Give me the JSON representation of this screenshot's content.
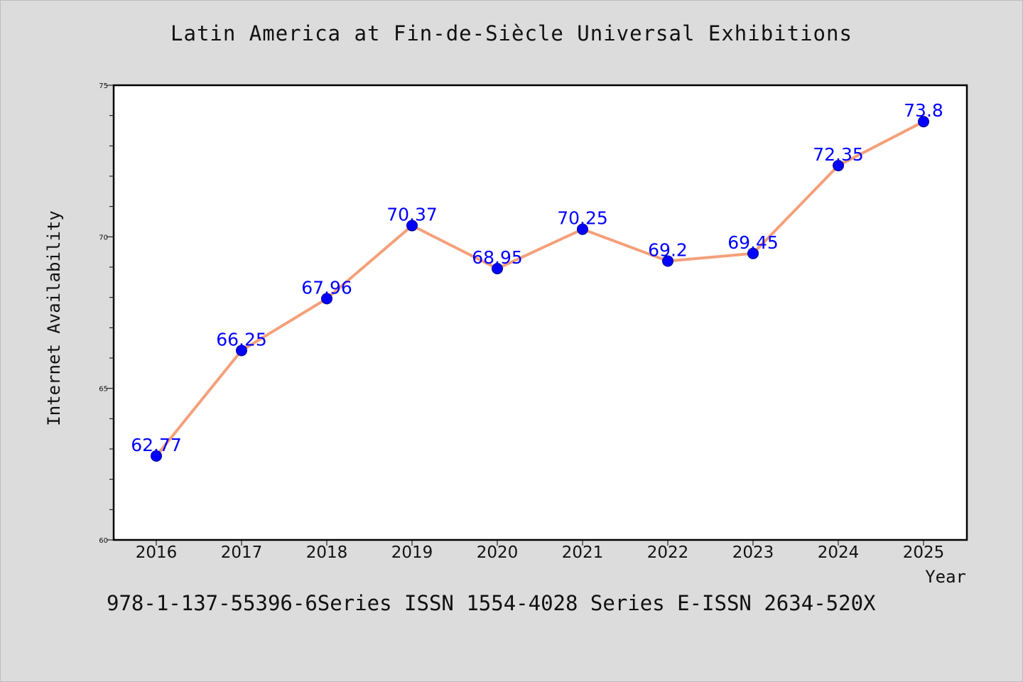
{
  "title": "Latin America at Fin-de-Siècle Universal Exhibitions",
  "footer": "978-1-137-55396-6Series ISSN 1554-4028 Series E-ISSN 2634-520X",
  "colors": {
    "background": "#dcdcdc",
    "plot_background": "#ffffff",
    "line": "#f4a07a",
    "marker": "#0000ff",
    "data_label": "#0000ff"
  },
  "chart_data": {
    "type": "line",
    "title": "Latin America at Fin-de-Siècle Universal Exhibitions",
    "xlabel": "Year",
    "ylabel": "Internet Availability",
    "categories": [
      "2016",
      "2017",
      "2018",
      "2019",
      "2020",
      "2021",
      "2022",
      "2023",
      "2024",
      "2025"
    ],
    "series": [
      {
        "values": [
          62.77,
          66.25,
          67.96,
          70.37,
          68.95,
          70.25,
          69.2,
          69.45,
          72.35,
          73.8
        ],
        "data_labels": [
          "62.77",
          "66.25",
          "67.96",
          "70.37",
          "68.95",
          "70.25",
          "69.2",
          "69.45",
          "72.35",
          "73.8"
        ]
      }
    ],
    "ylim": [
      60,
      75
    ],
    "yticks": [
      "60",
      "65",
      "70",
      "75"
    ],
    "grid": false,
    "legend": "none"
  }
}
